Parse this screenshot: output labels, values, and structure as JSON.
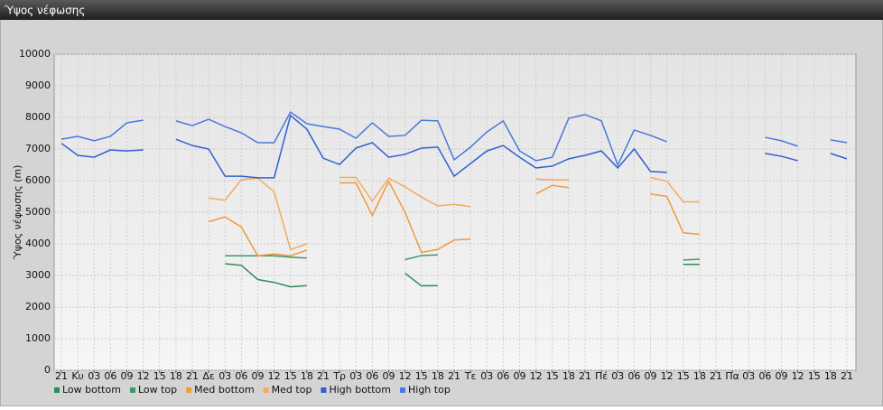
{
  "chart_data": {
    "type": "line",
    "title": "Ύψος νέφωσης",
    "y_label": "Ύψος νέφωσης (m)",
    "categories": [
      "21",
      "Κυ",
      "03",
      "06",
      "09",
      "12",
      "15",
      "18",
      "21",
      "Δε",
      "03",
      "06",
      "09",
      "12",
      "15",
      "18",
      "21",
      "Τρ",
      "03",
      "06",
      "09",
      "12",
      "15",
      "18",
      "21",
      "Τε",
      "03",
      "06",
      "09",
      "12",
      "15",
      "18",
      "21",
      "Πέ",
      "03",
      "06",
      "09",
      "12",
      "15",
      "18",
      "21",
      "Πα",
      "03",
      "06",
      "09",
      "12",
      "15",
      "18",
      "21"
    ],
    "ylim": [
      0,
      10000
    ],
    "yticks": [
      0,
      1000,
      2000,
      3000,
      4000,
      5000,
      6000,
      7000,
      8000,
      9000,
      10000
    ],
    "grid": true,
    "legend": "bottom",
    "series": [
      {
        "name": "Low bottom",
        "color": "#2e8b57",
        "values": [
          null,
          null,
          null,
          null,
          null,
          null,
          null,
          null,
          null,
          null,
          3370,
          3320,
          2870,
          2780,
          2640,
          2680,
          null,
          null,
          null,
          null,
          null,
          3070,
          2670,
          2680,
          null,
          null,
          null,
          null,
          null,
          null,
          null,
          null,
          null,
          null,
          null,
          null,
          null,
          null,
          3350,
          3350,
          null,
          null,
          null,
          null,
          null,
          null,
          null,
          null,
          null
        ]
      },
      {
        "name": "Low top",
        "color": "#3a9a6a",
        "values": [
          null,
          null,
          null,
          null,
          null,
          null,
          null,
          null,
          null,
          null,
          3620,
          3620,
          3620,
          3620,
          3580,
          3550,
          null,
          null,
          null,
          null,
          null,
          3500,
          3630,
          3650,
          null,
          null,
          null,
          null,
          null,
          null,
          null,
          null,
          null,
          null,
          null,
          null,
          null,
          null,
          3490,
          3510,
          null,
          null,
          null,
          null,
          null,
          null,
          null,
          null,
          null
        ]
      },
      {
        "name": "Med bottom",
        "color": "#f09a40",
        "values": [
          null,
          null,
          null,
          null,
          null,
          null,
          null,
          null,
          null,
          4700,
          4850,
          4530,
          3620,
          3680,
          3620,
          3800,
          null,
          5930,
          5930,
          4900,
          5980,
          5000,
          3730,
          3820,
          4120,
          4150,
          null,
          null,
          null,
          5580,
          5850,
          5780,
          null,
          null,
          null,
          null,
          5580,
          5500,
          4350,
          4300,
          null,
          null,
          null,
          null,
          null,
          null,
          null,
          null,
          null
        ]
      },
      {
        "name": "Med top",
        "color": "#f4aa5c",
        "values": [
          null,
          null,
          null,
          null,
          null,
          null,
          null,
          null,
          null,
          5450,
          5380,
          6030,
          6080,
          5650,
          3820,
          4000,
          null,
          6100,
          6100,
          5350,
          6080,
          5800,
          5480,
          5200,
          5250,
          5180,
          null,
          null,
          null,
          6050,
          6020,
          6020,
          null,
          null,
          null,
          null,
          6100,
          5980,
          5330,
          5330,
          null,
          null,
          null,
          null,
          null,
          null,
          null,
          null,
          null
        ]
      },
      {
        "name": "High bottom",
        "color": "#3060d0",
        "values": [
          7180,
          6800,
          6740,
          6970,
          6940,
          6970,
          null,
          7310,
          7110,
          7000,
          6140,
          6140,
          6090,
          6090,
          8060,
          7630,
          6710,
          6510,
          7030,
          7200,
          6740,
          6830,
          7030,
          7060,
          6140,
          6540,
          6940,
          7110,
          6740,
          6400,
          6460,
          6690,
          6800,
          6940,
          6400,
          7000,
          6290,
          6260,
          null,
          null,
          null,
          null,
          null,
          6860,
          6770,
          6630,
          null,
          6860,
          6690
        ]
      },
      {
        "name": "High top",
        "color": "#4a78dc",
        "values": [
          7310,
          7400,
          7260,
          7400,
          7830,
          7910,
          null,
          7890,
          7740,
          7940,
          7710,
          7510,
          7200,
          7200,
          8170,
          7800,
          7710,
          7630,
          7340,
          7830,
          7400,
          7430,
          7910,
          7890,
          6660,
          7060,
          7540,
          7890,
          6940,
          6630,
          6740,
          7970,
          8090,
          7890,
          6490,
          7600,
          7430,
          7230,
          null,
          null,
          null,
          null,
          null,
          7370,
          7260,
          7090,
          null,
          7290,
          7200
        ]
      }
    ]
  }
}
